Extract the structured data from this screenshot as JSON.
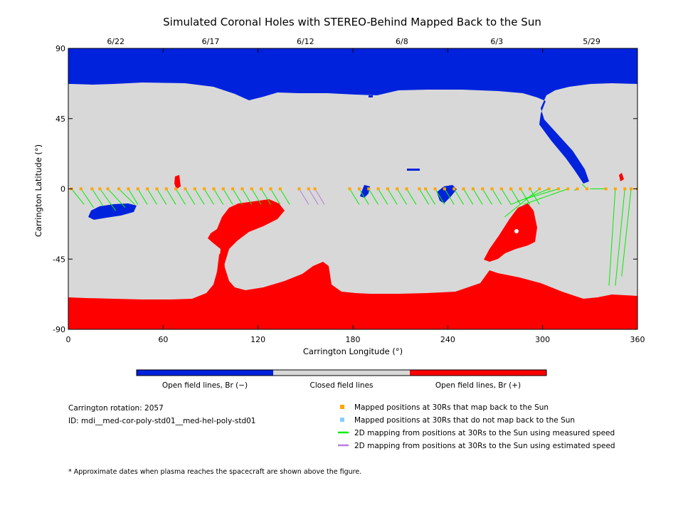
{
  "chart_data": {
    "type": "heatmap",
    "title": "Simulated Coronal Holes with STEREO-Behind Mapped Back to the Sun",
    "xlabel": "Carrington Longitude (°)",
    "ylabel": "Carrington Latitude (°)",
    "xlim": [
      0,
      360
    ],
    "ylim": [
      -90,
      90
    ],
    "xticks": [
      "0",
      "60",
      "120",
      "180",
      "240",
      "300",
      "360"
    ],
    "xtick_values": [
      0,
      60,
      120,
      180,
      240,
      300,
      360
    ],
    "yticks": [
      "90",
      "45",
      "0",
      "-45",
      "-90"
    ],
    "ytick_values": [
      90,
      45,
      0,
      -45,
      -90
    ],
    "top_dates": [
      {
        "label": "6/22",
        "lon": 30
      },
      {
        "label": "6/17",
        "lon": 90
      },
      {
        "label": "6/12",
        "lon": 150
      },
      {
        "label": "6/8",
        "lon": 211
      },
      {
        "label": "6/3",
        "lon": 271
      },
      {
        "label": "5/29",
        "lon": 331
      }
    ],
    "colorbar": [
      {
        "label": "Open field lines, Br (−)",
        "color": "#0022dd"
      },
      {
        "label": "Closed field lines",
        "color": "#d8d8d8"
      },
      {
        "label": "Open field lines, Br (+)",
        "color": "#ff0000"
      }
    ],
    "mapped_positions_lon": [
      2,
      8,
      15,
      20,
      25,
      32,
      38,
      44,
      50,
      56,
      62,
      68,
      74,
      80,
      86,
      92,
      98,
      104,
      110,
      116,
      122,
      128,
      134,
      146,
      152,
      156,
      178,
      184,
      190,
      196,
      202,
      208,
      214,
      222,
      226,
      232,
      238,
      244,
      250,
      256,
      262,
      268,
      274,
      280,
      286,
      292,
      298,
      304,
      310,
      316,
      322,
      328,
      340,
      346,
      352,
      356,
      360
    ],
    "hole_regions": [
      {
        "polarity": "negative",
        "lon": [
          8,
          45
        ],
        "lat": [
          -10,
          -18
        ]
      },
      {
        "polarity": "negative",
        "lon": [
          185,
          192
        ],
        "lat": [
          2,
          -5
        ]
      },
      {
        "polarity": "negative",
        "lon": [
          236,
          246
        ],
        "lat": [
          2,
          -8
        ]
      },
      {
        "polarity": "negative",
        "lon": [
          300,
          330
        ],
        "lat": [
          52,
          -2
        ]
      },
      {
        "polarity": "negative",
        "lon": [
          0,
          360
        ],
        "lat": [
          90,
          58
        ]
      },
      {
        "polarity": "positive",
        "lon": [
          0,
          360
        ],
        "lat": [
          -68,
          -90
        ]
      },
      {
        "polarity": "positive",
        "lon": [
          88,
          160
        ],
        "lat": [
          -10,
          -65
        ]
      },
      {
        "polarity": "positive",
        "lon": [
          262,
          294
        ],
        "lat": [
          -8,
          -44
        ]
      }
    ]
  },
  "info": {
    "rotation": "Carrington rotation: 2057",
    "id": "ID: mdi__med-cor-poly-std01__med-hel-poly-std01",
    "footnote": "* Approximate dates when plasma reaches the spacecraft are shown above the figure."
  },
  "legend": [
    {
      "label": "Mapped positions at 30Rs that map back to the Sun",
      "color": "#ffa500",
      "kind": "square"
    },
    {
      "label": "Mapped positions at 30Rs that do not map back to the Sun",
      "color": "#87cefa",
      "kind": "square"
    },
    {
      "label": "2D mapping from positions at 30Rs to the Sun using measured speed",
      "color": "#00ee00",
      "kind": "line"
    },
    {
      "label": "2D mapping from positions at 30Rs to the Sun using estimated speed",
      "color": "#b57edc",
      "kind": "line"
    }
  ]
}
